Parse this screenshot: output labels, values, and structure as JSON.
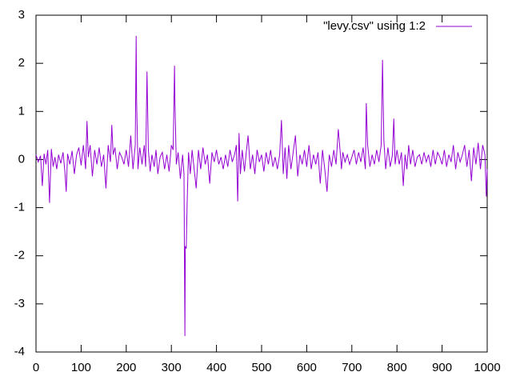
{
  "chart_data": {
    "type": "line",
    "x": [
      0,
      5,
      10,
      14,
      18,
      22,
      26,
      30,
      34,
      38,
      42,
      46,
      50,
      55,
      60,
      64,
      67,
      70,
      75,
      80,
      85,
      90,
      95,
      100,
      105,
      110,
      113,
      116,
      120,
      125,
      130,
      135,
      140,
      145,
      150,
      155,
      160,
      165,
      168,
      171,
      175,
      180,
      185,
      190,
      195,
      200,
      205,
      210,
      215,
      220,
      222,
      223,
      226,
      230,
      235,
      240,
      243,
      246,
      249,
      253,
      257,
      262,
      266,
      270,
      275,
      280,
      285,
      290,
      295,
      300,
      304,
      307,
      308,
      311,
      315,
      320,
      325,
      328,
      330,
      331,
      333,
      335,
      338,
      342,
      346,
      350,
      355,
      360,
      365,
      370,
      375,
      380,
      385,
      390,
      395,
      400,
      405,
      410,
      415,
      420,
      425,
      430,
      435,
      440,
      444,
      447,
      450,
      453,
      457,
      462,
      466,
      470,
      475,
      480,
      485,
      490,
      495,
      500,
      505,
      510,
      515,
      520,
      525,
      530,
      535,
      540,
      544,
      548,
      552,
      556,
      560,
      565,
      570,
      575,
      580,
      585,
      590,
      595,
      600,
      605,
      610,
      615,
      620,
      625,
      630,
      635,
      640,
      645,
      650,
      655,
      660,
      665,
      670,
      673,
      677,
      680,
      685,
      690,
      695,
      700,
      705,
      710,
      715,
      720,
      725,
      730,
      732,
      735,
      740,
      745,
      750,
      755,
      760,
      765,
      768,
      771,
      775,
      780,
      785,
      790,
      793,
      796,
      800,
      805,
      810,
      814,
      818,
      822,
      826,
      830,
      835,
      840,
      845,
      850,
      855,
      860,
      865,
      870,
      875,
      880,
      885,
      890,
      895,
      900,
      905,
      910,
      915,
      920,
      925,
      930,
      935,
      940,
      945,
      950,
      955,
      960,
      965,
      970,
      975,
      980,
      985,
      990,
      995,
      998,
      1000
    ],
    "series": [
      {
        "name": "\"levy.csv\" using 1:2",
        "color": "#9400d3",
        "values": [
          0.1,
          -0.05,
          0.08,
          -0.55,
          0.12,
          -0.1,
          0.2,
          -0.9,
          0.22,
          -0.15,
          0.05,
          -0.2,
          0.1,
          -0.08,
          0.15,
          -0.25,
          -0.67,
          0.12,
          -0.1,
          0.18,
          -0.3,
          0.1,
          0.25,
          -0.12,
          0.3,
          -0.2,
          0.8,
          0.05,
          0.3,
          -0.35,
          0.2,
          -0.1,
          0.25,
          -0.15,
          0.1,
          -0.6,
          0.3,
          -0.05,
          0.72,
          0.1,
          0.25,
          -0.2,
          0.15,
          0.05,
          -0.1,
          0.2,
          -0.15,
          0.5,
          -0.2,
          0.3,
          2.57,
          1.25,
          -0.2,
          0.25,
          -0.1,
          0.3,
          -0.15,
          1.83,
          0.2,
          -0.25,
          0.1,
          -0.15,
          0.2,
          -0.3,
          0.05,
          0.15,
          -0.2,
          0.1,
          -0.25,
          0.3,
          0.2,
          1.95,
          1.18,
          -0.1,
          0.15,
          -0.4,
          0.1,
          -0.3,
          -3.67,
          -1.8,
          -1.85,
          -0.9,
          0.15,
          -0.3,
          0.2,
          -0.15,
          -0.6,
          0.2,
          -0.2,
          0.25,
          -0.1,
          0.1,
          -0.5,
          0.15,
          -0.05,
          0.2,
          -0.1,
          0.05,
          -0.2,
          0.1,
          -0.15,
          0.2,
          -0.05,
          0.1,
          0.3,
          -0.87,
          0.55,
          -0.3,
          0.2,
          -0.25,
          0.15,
          0.5,
          -0.2,
          0.1,
          -0.3,
          0.2,
          -0.05,
          0.1,
          -0.25,
          0.15,
          -0.1,
          0.2,
          -0.15,
          0.05,
          -0.2,
          0.1,
          0.82,
          -0.3,
          0.25,
          -0.4,
          0.3,
          -0.2,
          0.15,
          0.5,
          -0.35,
          0.1,
          -0.1,
          0.2,
          -0.15,
          0.3,
          -0.2,
          0.1,
          -0.1,
          0.15,
          -0.5,
          0.2,
          -0.2,
          -0.67,
          0.1,
          -0.15,
          0.2,
          -0.1,
          0.63,
          0.3,
          -0.2,
          0.15,
          -0.05,
          0.1,
          -0.1,
          0.05,
          0.2,
          -0.1,
          0.15,
          -0.05,
          0.25,
          -0.2,
          1.17,
          0.3,
          -0.15,
          0.1,
          -0.1,
          0.2,
          -0.05,
          0.3,
          2.07,
          0.4,
          -0.2,
          0.25,
          -0.15,
          0.1,
          0.85,
          -0.1,
          0.2,
          -0.1,
          0.15,
          -0.55,
          0.1,
          -0.2,
          0.3,
          -0.1,
          0.2,
          -0.15,
          0.05,
          0.1,
          -0.1,
          0.15,
          -0.05,
          0.1,
          -0.15,
          0.2,
          -0.1,
          0.15,
          0.05,
          -0.1,
          0.2,
          -0.15,
          0.1,
          -0.05,
          0.3,
          -0.2,
          0.15,
          -0.05,
          0.1,
          0.3,
          -0.15,
          0.2,
          -0.45,
          0.25,
          -0.1,
          0.35,
          -0.2,
          0.3,
          0.1,
          -0.77,
          -0.2
        ]
      }
    ],
    "xlim": [
      0,
      1000
    ],
    "xticks": [
      0,
      100,
      200,
      300,
      400,
      500,
      600,
      700,
      800,
      900,
      1000
    ],
    "ylim": [
      -4,
      3
    ],
    "yticks": [
      -4,
      -3,
      -2,
      -1,
      0,
      1,
      2,
      3
    ],
    "legend": "top-right"
  }
}
